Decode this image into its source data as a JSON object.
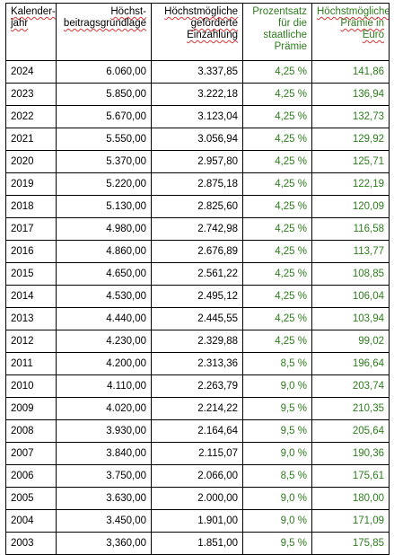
{
  "table": {
    "headers": {
      "year": "Kalender-jahr",
      "max_base": "Höchst-beitragsgrundlage",
      "max_payment": "Höchstmögliche geförderte Einzahlung",
      "percentage": "Prozentsatz für die staatliche Prämie",
      "max_premium": "Höchstmögliche Prämie in Euro"
    },
    "rows": [
      {
        "year": "2024",
        "base": "6.060,00",
        "payment": "3.337,85",
        "pct": "4,25 %",
        "premium": "141,86"
      },
      {
        "year": "2023",
        "base": "5.850,00",
        "payment": "3.222,18",
        "pct": "4,25 %",
        "premium": "136,94"
      },
      {
        "year": "2022",
        "base": "5.670,00",
        "payment": "3.123,04",
        "pct": "4,25 %",
        "premium": "132,73"
      },
      {
        "year": "2021",
        "base": "5.550,00",
        "payment": "3.056,94",
        "pct": "4,25 %",
        "premium": "129,92"
      },
      {
        "year": "2020",
        "base": "5.370,00",
        "payment": "2.957,80",
        "pct": "4,25 %",
        "premium": "125,71"
      },
      {
        "year": "2019",
        "base": "5.220,00",
        "payment": "2.875,18",
        "pct": "4,25 %",
        "premium": "122,19"
      },
      {
        "year": "2018",
        "base": "5.130,00",
        "payment": "2.825,60",
        "pct": "4,25 %",
        "premium": "120,09"
      },
      {
        "year": "2017",
        "base": "4.980,00",
        "payment": "2.742,98",
        "pct": "4,25 %",
        "premium": "116,58"
      },
      {
        "year": "2016",
        "base": "4.860,00",
        "payment": "2.676,89",
        "pct": "4,25 %",
        "premium": "113,77"
      },
      {
        "year": "2015",
        "base": "4.650,00",
        "payment": "2.561,22",
        "pct": "4,25 %",
        "premium": "108,85"
      },
      {
        "year": "2014",
        "base": "4.530,00",
        "payment": "2.495,12",
        "pct": "4,25 %",
        "premium": "106,04"
      },
      {
        "year": "2013",
        "base": "4.440,00",
        "payment": "2.445,55",
        "pct": "4,25 %",
        "premium": "103,94"
      },
      {
        "year": "2012",
        "base": "4.230,00",
        "payment": "2.329,88",
        "pct": "4,25 %",
        "premium": "99,02"
      },
      {
        "year": "2011",
        "base": "4.200,00",
        "payment": "2.313,36",
        "pct": "8,5 %",
        "premium": "196,64"
      },
      {
        "year": "2010",
        "base": "4.110,00",
        "payment": "2.263,79",
        "pct": "9,0 %",
        "premium": "203,74"
      },
      {
        "year": "2009",
        "base": "4.020,00",
        "payment": "2.214,22",
        "pct": "9,5 %",
        "premium": "210,35"
      },
      {
        "year": "2008",
        "base": "3.930,00",
        "payment": "2.164,64",
        "pct": "9,5 %",
        "premium": "205,64"
      },
      {
        "year": "2007",
        "base": "3.840,00",
        "payment": "2.115,07",
        "pct": "9,0 %",
        "premium": "190,36"
      },
      {
        "year": "2006",
        "base": "3.750,00",
        "payment": "2.066,00",
        "pct": "8,5 %",
        "premium": "175,61"
      },
      {
        "year": "2005",
        "base": "3.630,00",
        "payment": "2.000,00",
        "pct": "9,0 %",
        "premium": "180,00"
      },
      {
        "year": "2004",
        "base": "3.450,00",
        "payment": "1.901,00",
        "pct": "9,0 %",
        "premium": "171,09"
      },
      {
        "year": "2003",
        "base": "3,360,00",
        "payment": "1.851,00",
        "pct": "9,5 %",
        "premium": "175,85"
      }
    ],
    "colors": {
      "highlight_text": "#2e7d1e",
      "spellcheck_underline": "#dd3333"
    }
  }
}
